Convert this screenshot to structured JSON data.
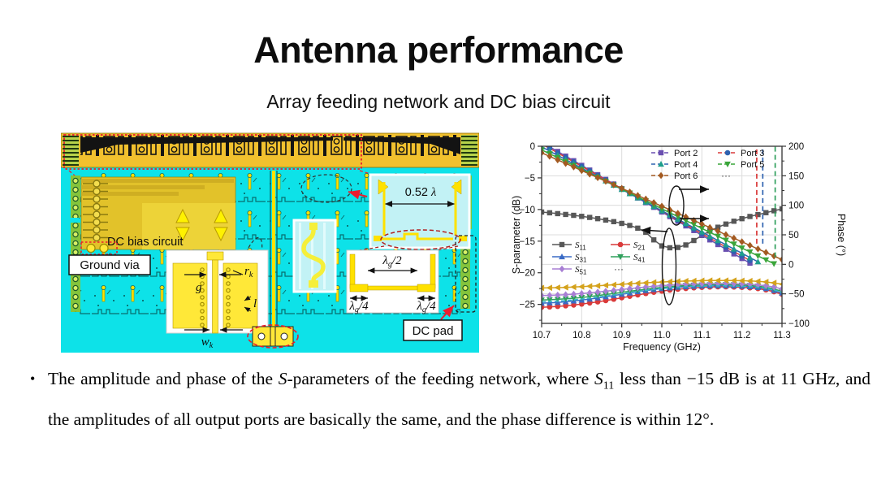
{
  "slide": {
    "title": "Antenna performance",
    "subtitle": "Array feeding network and DC bias circuit"
  },
  "figure": {
    "dc_bias_label": "DC bias circuit",
    "ground_via_label": "Ground via",
    "dc_pad_label": "DC pad",
    "spacing_value": "0.52 ",
    "lambda": "λ",
    "sub_g": "g",
    "half": "/2",
    "quarter": "/4",
    "gap_label": "g",
    "radius_label": "r",
    "sub_k": "k",
    "length_label": "l",
    "width_label": "w",
    "board_color": "#0de2e8",
    "metal_color": "#ffe100",
    "strip_color": "#f2c12e"
  },
  "chart_data": {
    "type": "line",
    "xlabel": "Frequency (GHz)",
    "ylabel_left": "S-parameter (dB)",
    "ylabel_right": "Phase (°)",
    "x_range": [
      10.7,
      11.3
    ],
    "x_ticks": [
      {
        "v": 10.7,
        "label": "10.7"
      },
      {
        "v": 10.8,
        "label": "10.8"
      },
      {
        "v": 10.9,
        "label": "10.9"
      },
      {
        "v": 11.0,
        "label": "11.0"
      },
      {
        "v": 11.1,
        "label": "11.1"
      },
      {
        "v": 11.2,
        "label": "11.2"
      },
      {
        "v": 11.3,
        "label": "11.3"
      }
    ],
    "y_left_display": [
      0,
      -28
    ],
    "y_left_ticks": [
      {
        "v": 0,
        "label": "0"
      },
      {
        "v": -5,
        "label": "−5"
      },
      {
        "v": -10,
        "label": "−10"
      },
      {
        "v": -15,
        "label": "−15"
      },
      {
        "v": -20,
        "label": "−20"
      },
      {
        "v": -25,
        "label": "−25"
      }
    ],
    "y_right_range": [
      200,
      -100
    ],
    "y_right_ticks": [
      {
        "v": 200,
        "label": "200"
      },
      {
        "v": 150,
        "label": "150"
      },
      {
        "v": 100,
        "label": "100"
      },
      {
        "v": 50,
        "label": "50"
      },
      {
        "v": 0,
        "label": "0"
      },
      {
        "v": -50,
        "label": "−50"
      },
      {
        "v": -100,
        "label": "−100"
      }
    ],
    "grid": true,
    "x_start": 10.7,
    "x_step": 0.02,
    "more_series_ellipsis": "···",
    "s_series": [
      {
        "name_main": "S",
        "name_sub": "11",
        "color": "#575757",
        "marker": "square",
        "legend": true,
        "values": [
          -10.4,
          -10.52,
          -10.65,
          -10.78,
          -10.92,
          -11.08,
          -11.25,
          -11.45,
          -11.67,
          -11.92,
          -12.2,
          -12.52,
          -12.95,
          -13.6,
          -14.8,
          -15.75,
          -16.05,
          -16.0,
          -15.6,
          -14.9,
          -14.1,
          -13.4,
          -12.8,
          -12.3,
          -11.85,
          -11.45,
          -11.1,
          -10.8,
          -10.5,
          -10.2,
          -9.9
        ]
      },
      {
        "name_main": "S",
        "name_sub": "21",
        "color": "#d93a3a",
        "marker": "circle",
        "legend": true,
        "values": [
          -25.45,
          -25.4,
          -25.32,
          -25.22,
          -25.1,
          -24.95,
          -24.78,
          -24.6,
          -24.4,
          -24.18,
          -23.95,
          -23.72,
          -23.5,
          -23.28,
          -23.08,
          -22.9,
          -22.74,
          -22.6,
          -22.48,
          -22.38,
          -22.3,
          -22.25,
          -22.22,
          -22.22,
          -22.25,
          -22.3,
          -22.38,
          -22.5,
          -22.7,
          -23.0,
          -23.4
        ]
      },
      {
        "name_main": "S",
        "name_sub": "31",
        "color": "#3a6bc6",
        "marker": "triangle-up",
        "legend": true,
        "values": [
          -24.8,
          -24.75,
          -24.68,
          -24.58,
          -24.46,
          -24.32,
          -24.16,
          -23.98,
          -23.8,
          -23.6,
          -23.4,
          -23.2,
          -23.0,
          -22.82,
          -22.65,
          -22.5,
          -22.38,
          -22.28,
          -22.2,
          -22.14,
          -22.1,
          -22.07,
          -22.05,
          -22.05,
          -22.08,
          -22.13,
          -22.2,
          -22.32,
          -22.5,
          -22.8,
          -23.2
        ]
      },
      {
        "name_main": "S",
        "name_sub": "41",
        "color": "#2fa05c",
        "marker": "triangle-down",
        "legend": true,
        "values": [
          -24.3,
          -24.26,
          -24.2,
          -24.12,
          -24.02,
          -23.9,
          -23.76,
          -23.6,
          -23.44,
          -23.27,
          -23.1,
          -22.93,
          -22.76,
          -22.6,
          -22.45,
          -22.32,
          -22.2,
          -22.1,
          -22.02,
          -21.96,
          -21.92,
          -21.89,
          -21.88,
          -21.88,
          -21.9,
          -21.95,
          -22.02,
          -22.12,
          -22.28,
          -22.55,
          -22.95
        ]
      },
      {
        "name_main": "S",
        "name_sub": "51",
        "color": "#a87fd4",
        "marker": "diamond",
        "legend": true,
        "values": [
          -23.6,
          -23.57,
          -23.52,
          -23.46,
          -23.38,
          -23.28,
          -23.17,
          -23.05,
          -22.92,
          -22.78,
          -22.64,
          -22.5,
          -22.37,
          -22.25,
          -22.14,
          -22.04,
          -21.95,
          -21.88,
          -21.82,
          -21.77,
          -21.74,
          -21.72,
          -21.71,
          -21.71,
          -21.73,
          -21.77,
          -21.83,
          -21.92,
          -22.05,
          -22.25,
          -22.55
        ]
      },
      {
        "name_main": "",
        "name_sub": "",
        "color": "#d4a21c",
        "marker": "triangle-left",
        "legend": false,
        "values": [
          -22.4,
          -22.38,
          -22.35,
          -22.31,
          -22.26,
          -22.2,
          -22.13,
          -22.06,
          -21.98,
          -21.9,
          -21.82,
          -21.74,
          -21.66,
          -21.59,
          -21.52,
          -21.46,
          -21.4,
          -21.35,
          -21.31,
          -21.28,
          -21.25,
          -21.23,
          -21.22,
          -21.22,
          -21.23,
          -21.26,
          -21.3,
          -21.36,
          -21.45,
          -21.6,
          -21.8
        ]
      },
      {
        "name_main": "",
        "name_sub": "",
        "color": "#35b6c9",
        "marker": "none",
        "dash": true,
        "legend": false,
        "values": [
          -24.6,
          -24.55,
          -24.48,
          -24.39,
          -24.28,
          -24.15,
          -24.0,
          -23.84,
          -23.67,
          -23.5,
          -23.32,
          -23.14,
          -22.97,
          -22.8,
          -22.64,
          -22.5,
          -22.38,
          -22.28,
          -22.2,
          -22.14,
          -22.1,
          -22.08,
          -22.07,
          -22.07,
          -22.1,
          -22.14,
          -22.2,
          -22.3,
          -22.46,
          -22.72,
          -23.1
        ]
      }
    ],
    "phase_series": [
      {
        "name": "Port 2",
        "color": "#6a4fb0",
        "marker": "square",
        "values": [
          207,
          199.1,
          191.2,
          183.3,
          175.5,
          167.6,
          159.7,
          151.8,
          143.9,
          136,
          128.1,
          120.3,
          112.4,
          104.5,
          96.6,
          88.7,
          80.8,
          72.9,
          65.1,
          57.2,
          49.3,
          41.4,
          33.5,
          25.6,
          17.7,
          9.9,
          2
        ]
      },
      {
        "name": "Port 3",
        "color": "#2e62b0",
        "line_color": "#d93a3a",
        "marker": "circle",
        "values": [
          204,
          196.4,
          188.8,
          181.2,
          173.6,
          166,
          158.4,
          150.8,
          143.2,
          135.6,
          128,
          120.4,
          112.8,
          105.2,
          97.6,
          90,
          82.4,
          74.8,
          67.2,
          59.7,
          52.1,
          44.5,
          36.9,
          29.3,
          21.7,
          14.1,
          6.5
        ]
      },
      {
        "name": "Port 4",
        "color": "#1f9e8c",
        "line_color": "#2e62b0",
        "marker": "triangle-up",
        "values": [
          199,
          191.8,
          184.6,
          177.4,
          170.2,
          163,
          155.7,
          148.5,
          141.3,
          134.1,
          126.9,
          119.7,
          112.5,
          105.3,
          98,
          90.8,
          83.6,
          76.4,
          69.2,
          62,
          54.8,
          47.6,
          40.3,
          33.1,
          25.9,
          18.7,
          11.5,
          4.3
        ]
      },
      {
        "name": "Port 5",
        "color": "#3aa53a",
        "marker": "triangle-down",
        "values": [
          194,
          187.3,
          180.7,
          174,
          167.4,
          160.7,
          154.1,
          147.4,
          140.7,
          134.1,
          127.4,
          120.8,
          114.1,
          107.5,
          100.8,
          94.2,
          87.5,
          80.8,
          74.2,
          67.5,
          60.9,
          54.2,
          47.6,
          40.9,
          34.3,
          27.6,
          20.9,
          14.3,
          7.6,
          1
        ]
      },
      {
        "name": "Port 6",
        "color": "#a35a21",
        "marker": "diamond",
        "values": [
          189,
          183,
          176.9,
          170.9,
          164.9,
          158.8,
          152.8,
          146.8,
          140.7,
          134.7,
          128.7,
          122.6,
          116.6,
          110.6,
          104.5,
          98.5,
          92.5,
          86.4,
          80.4,
          74.4,
          68.3,
          62.3,
          56.3,
          50.2,
          44.2,
          38.2,
          32.1,
          26.1,
          20.1,
          14,
          8
        ]
      }
    ],
    "wrap_lines": [
      {
        "x": 11.237,
        "color": "#d93a3a",
        "from": 35,
        "to": 200
      },
      {
        "x": 11.252,
        "color": "#2e62b0",
        "from": 35,
        "to": 200
      },
      {
        "x": 11.283,
        "color": "#2fa05c",
        "from": 12,
        "to": 200
      }
    ]
  },
  "bullet": {
    "marker": "•",
    "segments": [
      {
        "t": "The amplitude and phase of the "
      },
      {
        "t": "S",
        "style": "i"
      },
      {
        "t": "-parameters of the feeding network, where "
      },
      {
        "t": "S",
        "style": "i"
      },
      {
        "t": "11",
        "style": "sub"
      },
      {
        "t": " less than −15 dB is at 11 GHz, and the amplitudes of all output ports are basically the same, and the phase difference is within 12°."
      }
    ]
  }
}
